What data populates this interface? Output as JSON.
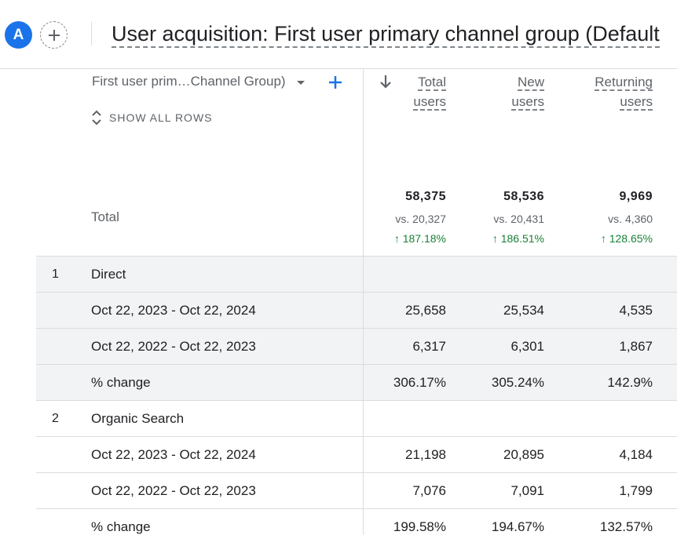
{
  "header": {
    "avatar_letter": "A",
    "title": "User acquisition: First user primary channel group (Default"
  },
  "table": {
    "dimension_header": "First user prim…Channel Group)",
    "show_all_rows": "SHOW ALL ROWS",
    "columns": [
      {
        "line1": "Total",
        "line2": "users"
      },
      {
        "line1": "New",
        "line2": "users"
      },
      {
        "line1": "Returning",
        "line2": "users"
      }
    ],
    "total": {
      "label": "Total",
      "values": [
        "58,375",
        "58,536",
        "9,969"
      ],
      "vs": [
        "vs. 20,327",
        "vs. 20,431",
        "vs. 4,360"
      ],
      "change": [
        "↑ 187.18%",
        "↑ 186.51%",
        "↑ 128.65%"
      ]
    },
    "rows": [
      {
        "num": "1",
        "label": "Direct",
        "values": [
          "",
          "",
          ""
        ]
      },
      {
        "num": "",
        "label": "Oct 22, 2023 - Oct 22, 2024",
        "values": [
          "25,658",
          "25,534",
          "4,535"
        ]
      },
      {
        "num": "",
        "label": "Oct 22, 2022 - Oct 22, 2023",
        "values": [
          "6,317",
          "6,301",
          "1,867"
        ]
      },
      {
        "num": "",
        "label": "% change",
        "values": [
          "306.17%",
          "305.24%",
          "142.9%"
        ]
      },
      {
        "num": "2",
        "label": "Organic Search",
        "values": [
          "",
          "",
          ""
        ]
      },
      {
        "num": "",
        "label": "Oct 22, 2023 - Oct 22, 2024",
        "values": [
          "21,198",
          "20,895",
          "4,184"
        ]
      },
      {
        "num": "",
        "label": "Oct 22, 2022 - Oct 22, 2023",
        "values": [
          "7,076",
          "7,091",
          "1,799"
        ]
      },
      {
        "num": "",
        "label": "% change",
        "values": [
          "199.58%",
          "194.67%",
          "132.57%"
        ]
      }
    ]
  },
  "colors": {
    "accent": "#1a73e8",
    "positive": "#188038",
    "row_shade": "#f1f3f4"
  }
}
